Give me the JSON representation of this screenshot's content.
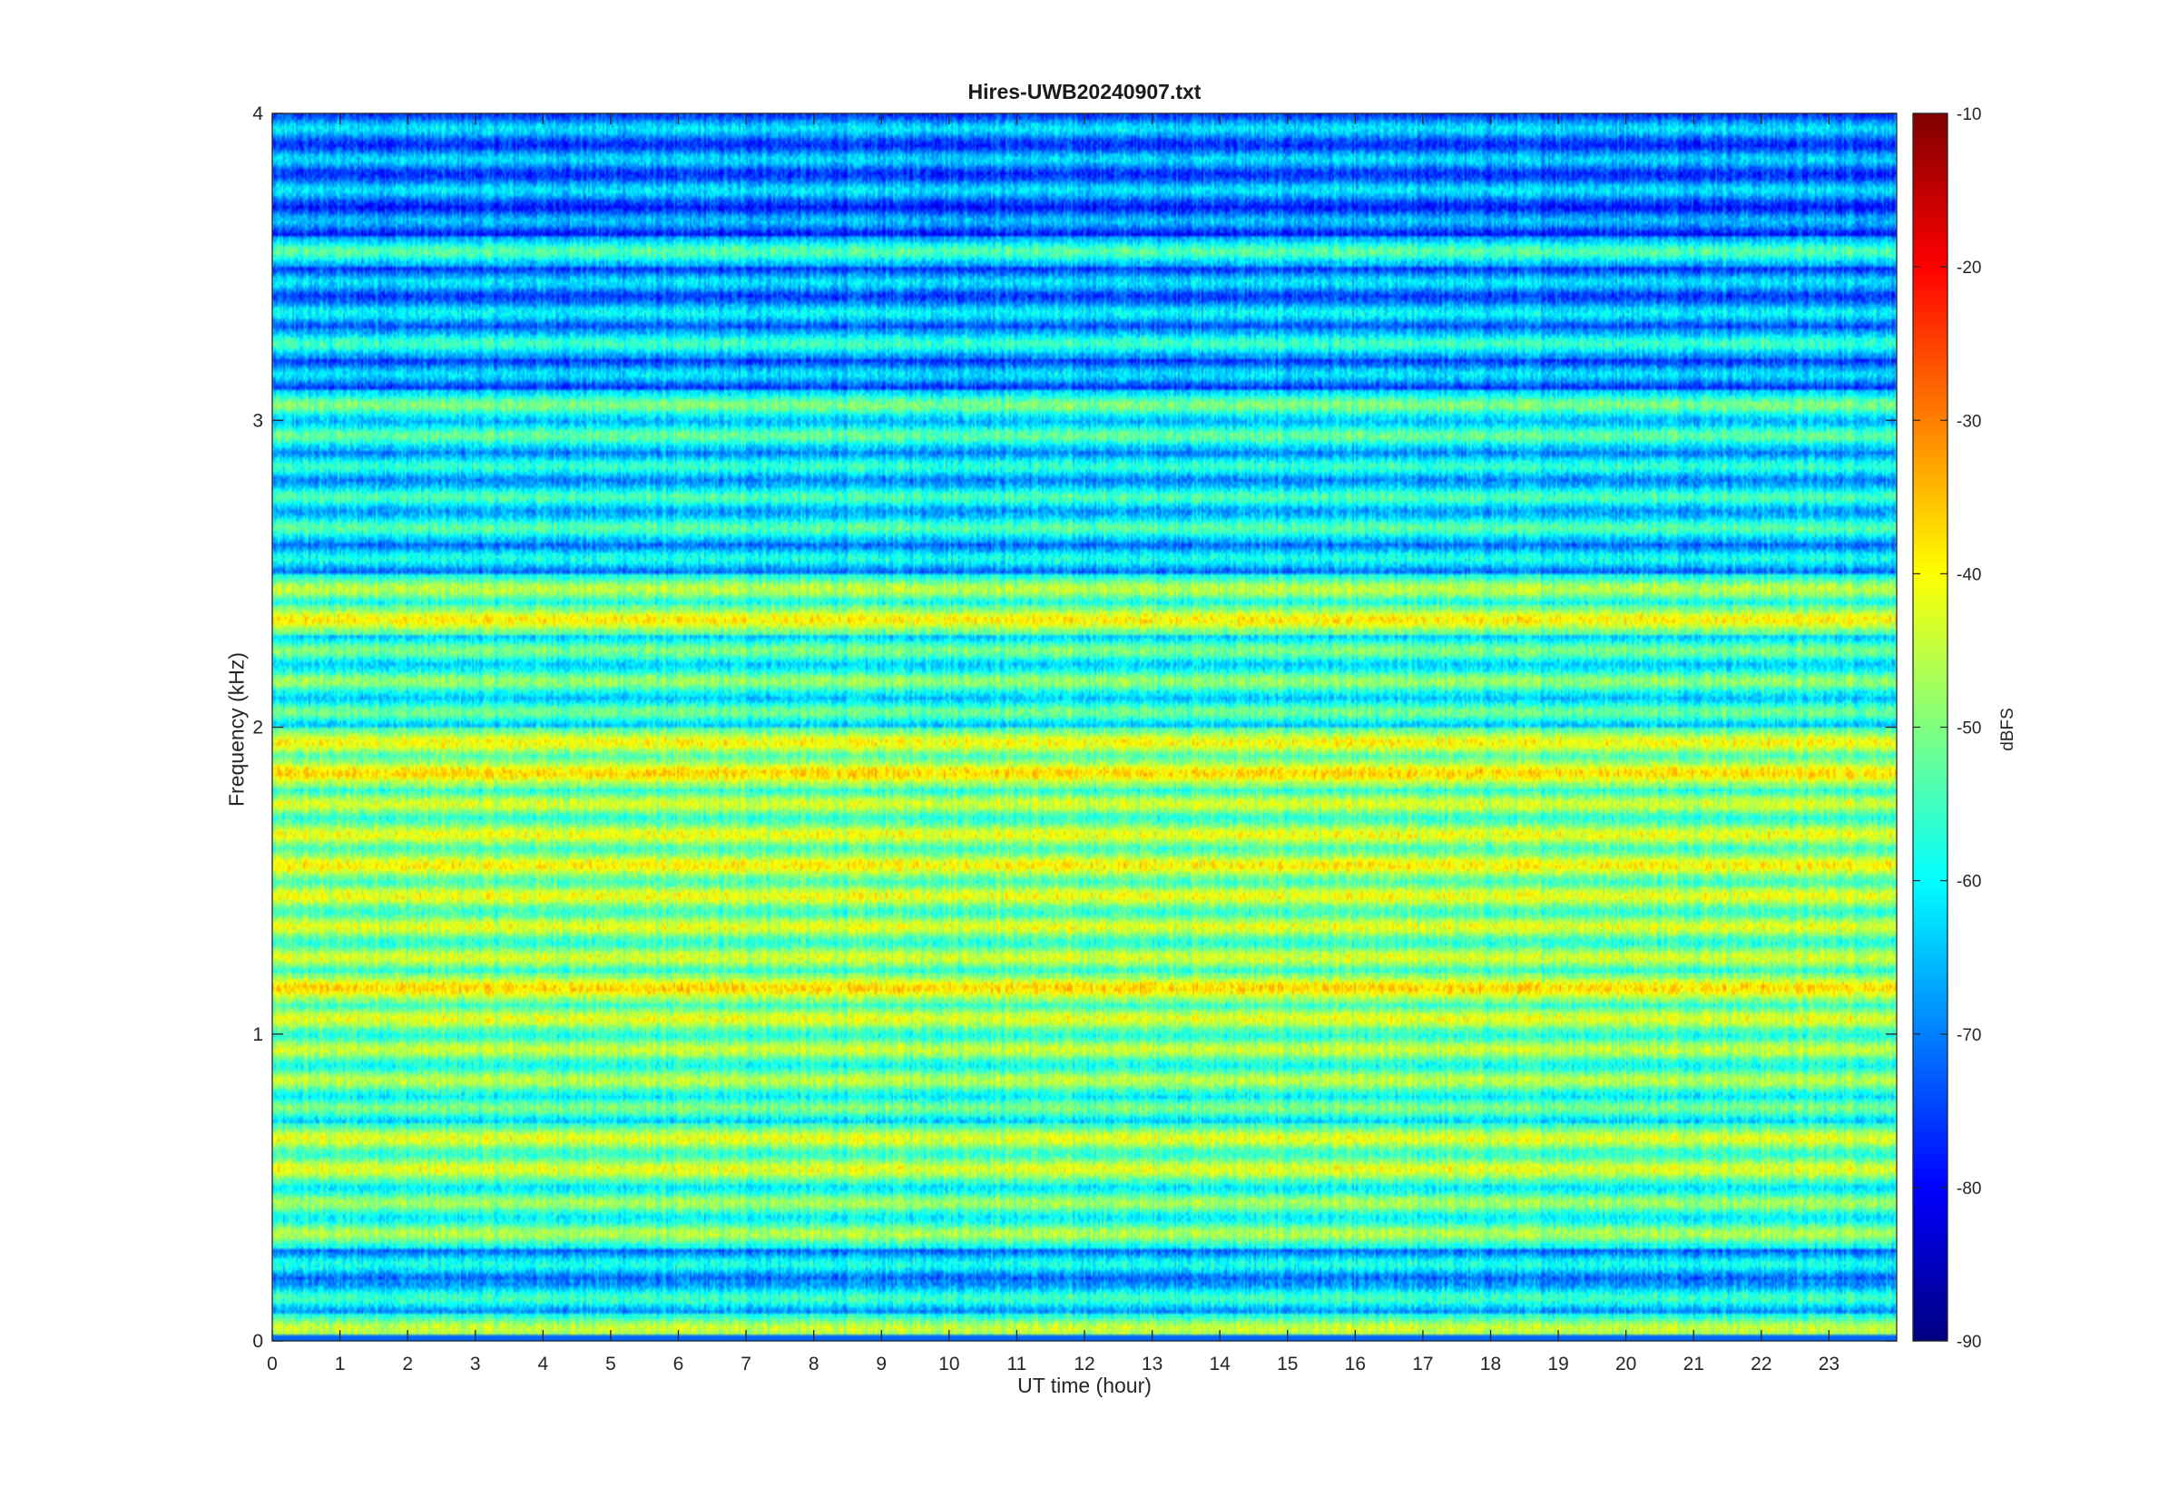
{
  "chart_data": {
    "type": "heatmap",
    "title": "Hires-UWB20240907.txt",
    "xlabel": "UT time (hour)",
    "ylabel": "Frequency (kHz)",
    "xlim": [
      0,
      24
    ],
    "ylim": [
      0,
      4
    ],
    "x_ticks": [
      0,
      1,
      2,
      3,
      4,
      5,
      6,
      7,
      8,
      9,
      10,
      11,
      12,
      13,
      14,
      15,
      16,
      17,
      18,
      19,
      20,
      21,
      22,
      23
    ],
    "y_ticks": [
      0,
      1,
      2,
      3,
      4
    ],
    "colormap": "jet",
    "colorbar": {
      "label": "dBFS",
      "range": [
        -90,
        -10
      ],
      "ticks": [
        -90,
        -80,
        -70,
        -60,
        -50,
        -40,
        -30,
        -20,
        -10
      ]
    },
    "grid": false,
    "bands_dbfs": [
      {
        "f": 0.04,
        "level": -44
      },
      {
        "f": 0.14,
        "level": -55
      },
      {
        "f": 0.25,
        "level": -58
      },
      {
        "f": 0.35,
        "level": -46
      },
      {
        "f": 0.45,
        "level": -47
      },
      {
        "f": 0.56,
        "level": -42
      },
      {
        "f": 0.66,
        "level": -42
      },
      {
        "f": 0.76,
        "level": -50
      },
      {
        "f": 0.85,
        "level": -45
      },
      {
        "f": 0.95,
        "level": -44
      },
      {
        "f": 1.05,
        "level": -42
      },
      {
        "f": 1.15,
        "level": -37
      },
      {
        "f": 1.25,
        "level": -43
      },
      {
        "f": 1.35,
        "level": -42
      },
      {
        "f": 1.45,
        "level": -41
      },
      {
        "f": 1.55,
        "level": -39
      },
      {
        "f": 1.65,
        "level": -41
      },
      {
        "f": 1.75,
        "level": -43
      },
      {
        "f": 1.85,
        "level": -37
      },
      {
        "f": 1.95,
        "level": -40
      },
      {
        "f": 2.05,
        "level": -51
      },
      {
        "f": 2.15,
        "level": -48
      },
      {
        "f": 2.25,
        "level": -50
      },
      {
        "f": 2.35,
        "level": -39
      },
      {
        "f": 2.45,
        "level": -45
      },
      {
        "f": 2.55,
        "level": -58
      },
      {
        "f": 2.65,
        "level": -53
      },
      {
        "f": 2.75,
        "level": -54
      },
      {
        "f": 2.85,
        "level": -56
      },
      {
        "f": 2.95,
        "level": -52
      },
      {
        "f": 3.05,
        "level": -50
      },
      {
        "f": 3.15,
        "level": -62
      },
      {
        "f": 3.25,
        "level": -55
      },
      {
        "f": 3.35,
        "level": -60
      },
      {
        "f": 3.45,
        "level": -62
      },
      {
        "f": 3.55,
        "level": -53
      },
      {
        "f": 3.65,
        "level": -65
      },
      {
        "f": 3.75,
        "level": -62
      },
      {
        "f": 3.85,
        "level": -63
      },
      {
        "f": 3.95,
        "level": -62
      }
    ]
  }
}
